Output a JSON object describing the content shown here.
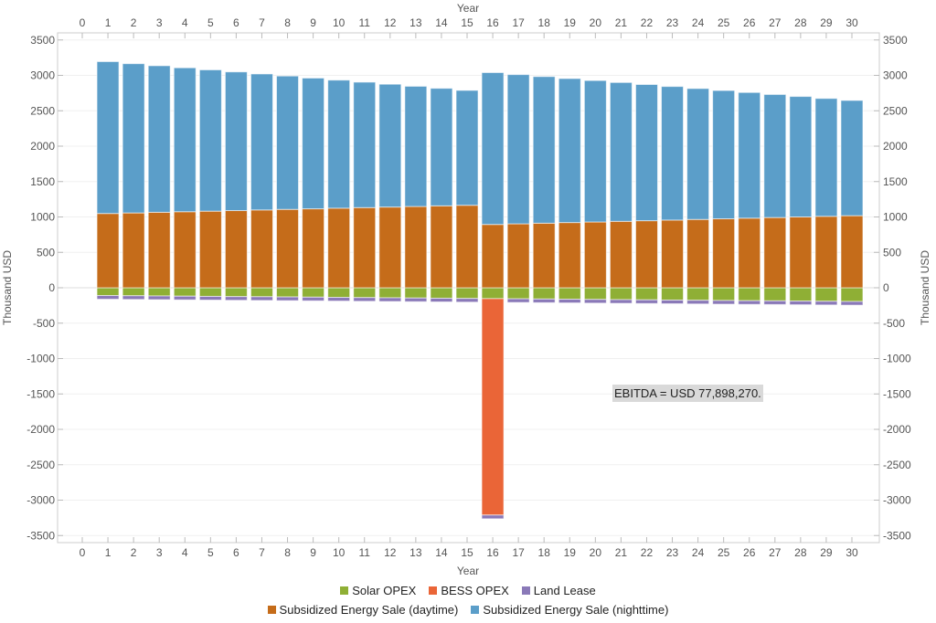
{
  "chart_data": {
    "type": "bar",
    "stacked": true,
    "xlabel": "Year",
    "ylabel": "Thousand USD",
    "ylim": [
      -3600,
      3600
    ],
    "xlim": [
      -1,
      31
    ],
    "x_ticks": [
      0,
      1,
      2,
      3,
      4,
      5,
      6,
      7,
      8,
      9,
      10,
      11,
      12,
      13,
      14,
      15,
      16,
      17,
      18,
      19,
      20,
      21,
      22,
      23,
      24,
      25,
      26,
      27,
      28,
      29,
      30
    ],
    "y_ticks": [
      -3500,
      -3000,
      -2500,
      -2000,
      -1500,
      -1000,
      -500,
      0,
      500,
      1000,
      1500,
      2000,
      2500,
      3000,
      3500
    ],
    "grid": true,
    "legend_position": "bottom-center",
    "x": [
      1,
      2,
      3,
      4,
      5,
      6,
      7,
      8,
      9,
      10,
      11,
      12,
      13,
      14,
      15,
      16,
      17,
      18,
      19,
      20,
      21,
      22,
      23,
      24,
      25,
      26,
      27,
      28,
      29,
      30
    ],
    "series": [
      {
        "name": "Solar OPEX",
        "color": "#8faf35",
        "values": [
          -110,
          -113,
          -116,
          -119,
          -122,
          -125,
          -127,
          -130,
          -133,
          -136,
          -139,
          -142,
          -145,
          -148,
          -151,
          -154,
          -156,
          -159,
          -162,
          -165,
          -168,
          -171,
          -174,
          -177,
          -180,
          -183,
          -185,
          -188,
          -191,
          -194
        ]
      },
      {
        "name": "BESS OPEX",
        "color": "#ea6537",
        "values": [
          0,
          0,
          0,
          0,
          0,
          0,
          0,
          0,
          0,
          0,
          0,
          0,
          0,
          0,
          0,
          -3057,
          0,
          0,
          0,
          0,
          0,
          0,
          0,
          0,
          0,
          0,
          0,
          0,
          0,
          0
        ]
      },
      {
        "name": "Land Lease",
        "color": "#8a79b8",
        "values": [
          -52,
          -52,
          -52,
          -52,
          -52,
          -52,
          -52,
          -52,
          -52,
          -52,
          -52,
          -52,
          -52,
          -52,
          -52,
          -52,
          -52,
          -52,
          -52,
          -52,
          -52,
          -52,
          -52,
          -52,
          -52,
          -52,
          -52,
          -52,
          -52,
          -52
        ]
      },
      {
        "name": "Subsidized Energy Sale (daytime)",
        "color": "#c56c1a",
        "values": [
          1049,
          1057,
          1066,
          1074,
          1082,
          1090,
          1099,
          1107,
          1115,
          1124,
          1132,
          1140,
          1148,
          1157,
          1165,
          894,
          903,
          912,
          921,
          929,
          938,
          947,
          956,
          965,
          974,
          983,
          992,
          1000,
          1009,
          1018
        ]
      },
      {
        "name": "Subsidized Energy Sale (nighttime)",
        "color": "#5b9ec9",
        "values": [
          2145,
          2108,
          2070,
          2033,
          1996,
          1959,
          1921,
          1884,
          1847,
          1809,
          1772,
          1735,
          1698,
          1660,
          1623,
          2145,
          2108,
          2071,
          2034,
          1998,
          1961,
          1924,
          1887,
          1849,
          1812,
          1775,
          1738,
          1702,
          1665,
          1628
        ]
      }
    ],
    "annotation": "EBITDA = USD 77,898,270."
  }
}
